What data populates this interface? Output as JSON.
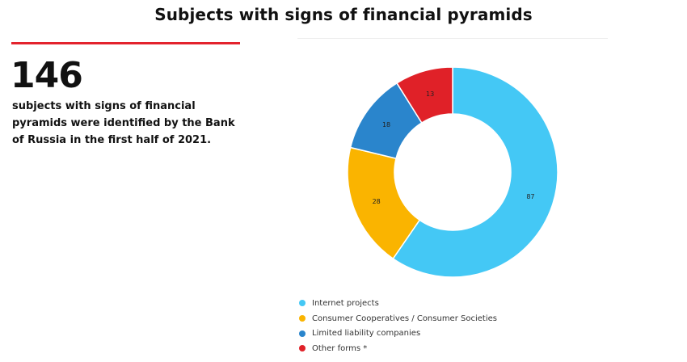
{
  "header": {
    "title": "Subjects with signs of financial pyramids"
  },
  "summary": {
    "big_number": "146",
    "description": "subjects with signs of financial pyramids were identified by the Bank of Russia in the first half of 2021."
  },
  "colors": {
    "accent": "#e3232d",
    "label_text": "#222222",
    "slice_border": "#ffffff"
  },
  "chart_data": {
    "type": "pie",
    "donut": true,
    "categories": [
      "Internet projects",
      "Consumer Cooperatives / Consumer Societies",
      "Limited liability companies",
      "Other forms *"
    ],
    "values": [
      87,
      28,
      18,
      13
    ],
    "colors": [
      "#44c8f5",
      "#fab400",
      "#2a85cc",
      "#e02128"
    ],
    "start_angle_deg": 0,
    "direction": "clockwise",
    "legend_position": "bottom-left"
  }
}
